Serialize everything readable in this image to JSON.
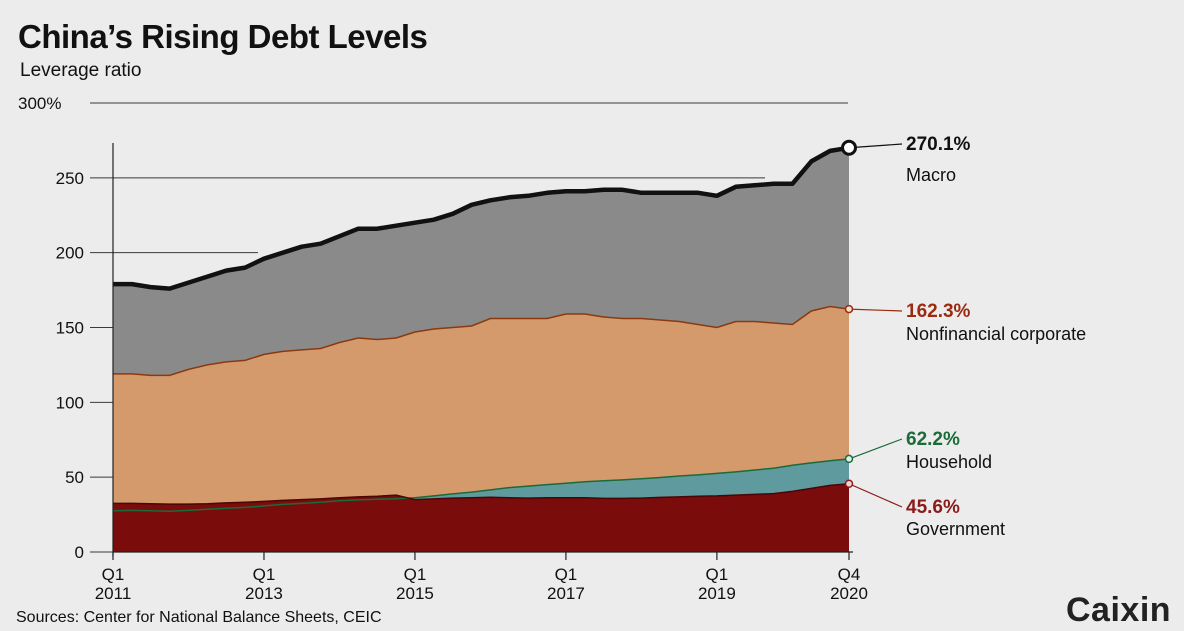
{
  "title": "China’s Rising Debt Levels",
  "subtitle": "Leverage ratio",
  "source": "Sources: Center for National Balance Sheets, CEIC",
  "brand": "Caixin",
  "colors": {
    "background": "#ececec",
    "macro_fill": "#8a8a8a",
    "macro_line": "#111111",
    "corporate_fill": "#d59a6c",
    "corporate_line": "#8a3a0e",
    "household_fill": "#5e9a9e",
    "household_line": "#1a6b3a",
    "government_fill": "#7a0c0c",
    "government_line": "#4a0606",
    "corporate_label": "#9a2a10",
    "household_label": "#1a6b3a",
    "government_label": "#8b1a1a"
  },
  "chart_data": {
    "type": "area",
    "ylim": [
      0,
      300
    ],
    "yticks": [
      {
        "value": 0,
        "label": "0"
      },
      {
        "value": 50,
        "label": "50"
      },
      {
        "value": 100,
        "label": "100"
      },
      {
        "value": 150,
        "label": "150"
      },
      {
        "value": 200,
        "label": "200"
      },
      {
        "value": 250,
        "label": "250"
      },
      {
        "value": 300,
        "label": "300%"
      }
    ],
    "xticks": [
      {
        "index": 0,
        "q": "Q1",
        "year": "2011"
      },
      {
        "index": 8,
        "q": "Q1",
        "year": "2013"
      },
      {
        "index": 16,
        "q": "Q1",
        "year": "2015"
      },
      {
        "index": 24,
        "q": "Q1",
        "year": "2017"
      },
      {
        "index": 32,
        "q": "Q1",
        "year": "2019"
      },
      {
        "index": 39,
        "q": "Q4",
        "year": "2020"
      }
    ],
    "x": [
      "2011Q1",
      "2011Q2",
      "2011Q3",
      "2011Q4",
      "2012Q1",
      "2012Q2",
      "2012Q3",
      "2012Q4",
      "2013Q1",
      "2013Q2",
      "2013Q3",
      "2013Q4",
      "2014Q1",
      "2014Q2",
      "2014Q3",
      "2014Q4",
      "2015Q1",
      "2015Q2",
      "2015Q3",
      "2015Q4",
      "2016Q1",
      "2016Q2",
      "2016Q3",
      "2016Q4",
      "2017Q1",
      "2017Q2",
      "2017Q3",
      "2017Q4",
      "2018Q1",
      "2018Q2",
      "2018Q3",
      "2018Q4",
      "2019Q1",
      "2019Q2",
      "2019Q3",
      "2019Q4",
      "2020Q1",
      "2020Q2",
      "2020Q3",
      "2020Q4"
    ],
    "series": [
      {
        "key": "macro",
        "name": "Macro",
        "values": [
          179,
          179,
          177,
          176,
          180,
          184,
          188,
          190,
          196,
          200,
          204,
          206,
          211,
          216,
          216,
          218,
          220,
          222,
          226,
          232,
          235,
          237,
          238,
          240,
          241,
          241,
          242,
          242,
          240,
          240,
          240,
          240,
          238,
          244,
          245,
          246,
          246,
          261,
          268,
          270.1
        ]
      },
      {
        "key": "corporate",
        "name": "Nonfinancial corporate",
        "values": [
          119,
          119,
          118,
          118,
          122,
          125,
          127,
          128,
          132,
          134,
          135,
          136,
          140,
          143,
          142,
          143,
          147,
          149,
          150,
          151,
          156,
          156,
          156,
          156,
          159,
          159,
          157,
          156,
          156,
          155,
          154,
          152,
          150,
          154,
          154,
          153,
          152,
          161,
          164,
          162.3
        ]
      },
      {
        "key": "household",
        "name": "Household",
        "values": [
          27.5,
          27.8,
          27.5,
          27.2,
          27.8,
          28.5,
          29.2,
          29.8,
          30.8,
          31.8,
          32.5,
          33.2,
          34.2,
          34.8,
          35.2,
          35.6,
          36.2,
          37.5,
          38.8,
          40,
          41.5,
          43,
          44,
          45,
          46,
          47,
          47.6,
          48.2,
          49,
          49.8,
          50.8,
          51.5,
          52.5,
          53.5,
          54.8,
          56,
          58,
          59.5,
          61,
          62.2
        ]
      },
      {
        "key": "government",
        "name": "Government",
        "values": [
          32.5,
          32.5,
          32.2,
          32,
          32,
          32.2,
          32.8,
          33.2,
          33.8,
          34.5,
          35,
          35.5,
          36.2,
          36.8,
          37.2,
          38,
          35,
          35.5,
          36,
          36.2,
          36.6,
          36.2,
          36,
          36.3,
          36.3,
          36.2,
          35.8,
          35.8,
          36,
          36.5,
          36.8,
          37.3,
          37.5,
          38,
          38.5,
          39,
          40.5,
          42.5,
          44.5,
          45.6
        ]
      }
    ],
    "annotations": [
      {
        "key": "macro",
        "value": "270.1%",
        "label": "Macro"
      },
      {
        "key": "corporate",
        "value": "162.3%",
        "label": "Nonfinancial corporate"
      },
      {
        "key": "household",
        "value": "62.2%",
        "label": "Household"
      },
      {
        "key": "government",
        "value": "45.6%",
        "label": "Government"
      }
    ]
  }
}
